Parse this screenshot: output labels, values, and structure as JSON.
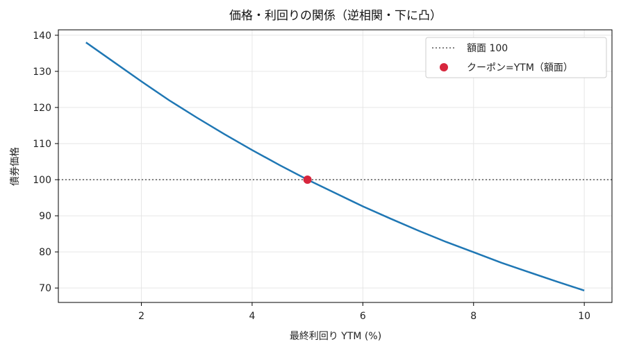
{
  "chart_data": {
    "type": "line",
    "title": "価格・利回りの関係（逆相関・下に凸）",
    "xlabel": "最終利回り YTM (%)",
    "ylabel": "債券価格",
    "xlim": [
      0.5,
      10.5
    ],
    "ylim": [
      66,
      141.5
    ],
    "xticks": [
      2,
      4,
      6,
      8,
      10
    ],
    "yticks": [
      70,
      80,
      90,
      100,
      110,
      120,
      130,
      140
    ],
    "grid": true,
    "legend_position": "top-right",
    "series": [
      {
        "name": "",
        "color": "#1f77b4",
        "x": [
          1.0,
          1.5,
          2.0,
          2.5,
          3.0,
          3.5,
          4.0,
          4.5,
          5.0,
          5.5,
          6.0,
          6.5,
          7.0,
          7.5,
          8.0,
          8.5,
          9.0,
          9.5,
          10.0
        ],
        "y": [
          138.0,
          132.6,
          127.2,
          122.0,
          117.2,
          112.6,
          108.2,
          104.0,
          100.0,
          96.3,
          92.6,
          89.2,
          85.9,
          82.8,
          79.9,
          77.0,
          74.4,
          71.8,
          69.3
        ]
      }
    ],
    "reference_line": {
      "name": "額面 100",
      "y": 100,
      "color": "#808080",
      "style": "dotted"
    },
    "highlight_point": {
      "name": "クーポン=YTM（額面）",
      "x": 5,
      "y": 100,
      "color": "#d7263d"
    }
  }
}
